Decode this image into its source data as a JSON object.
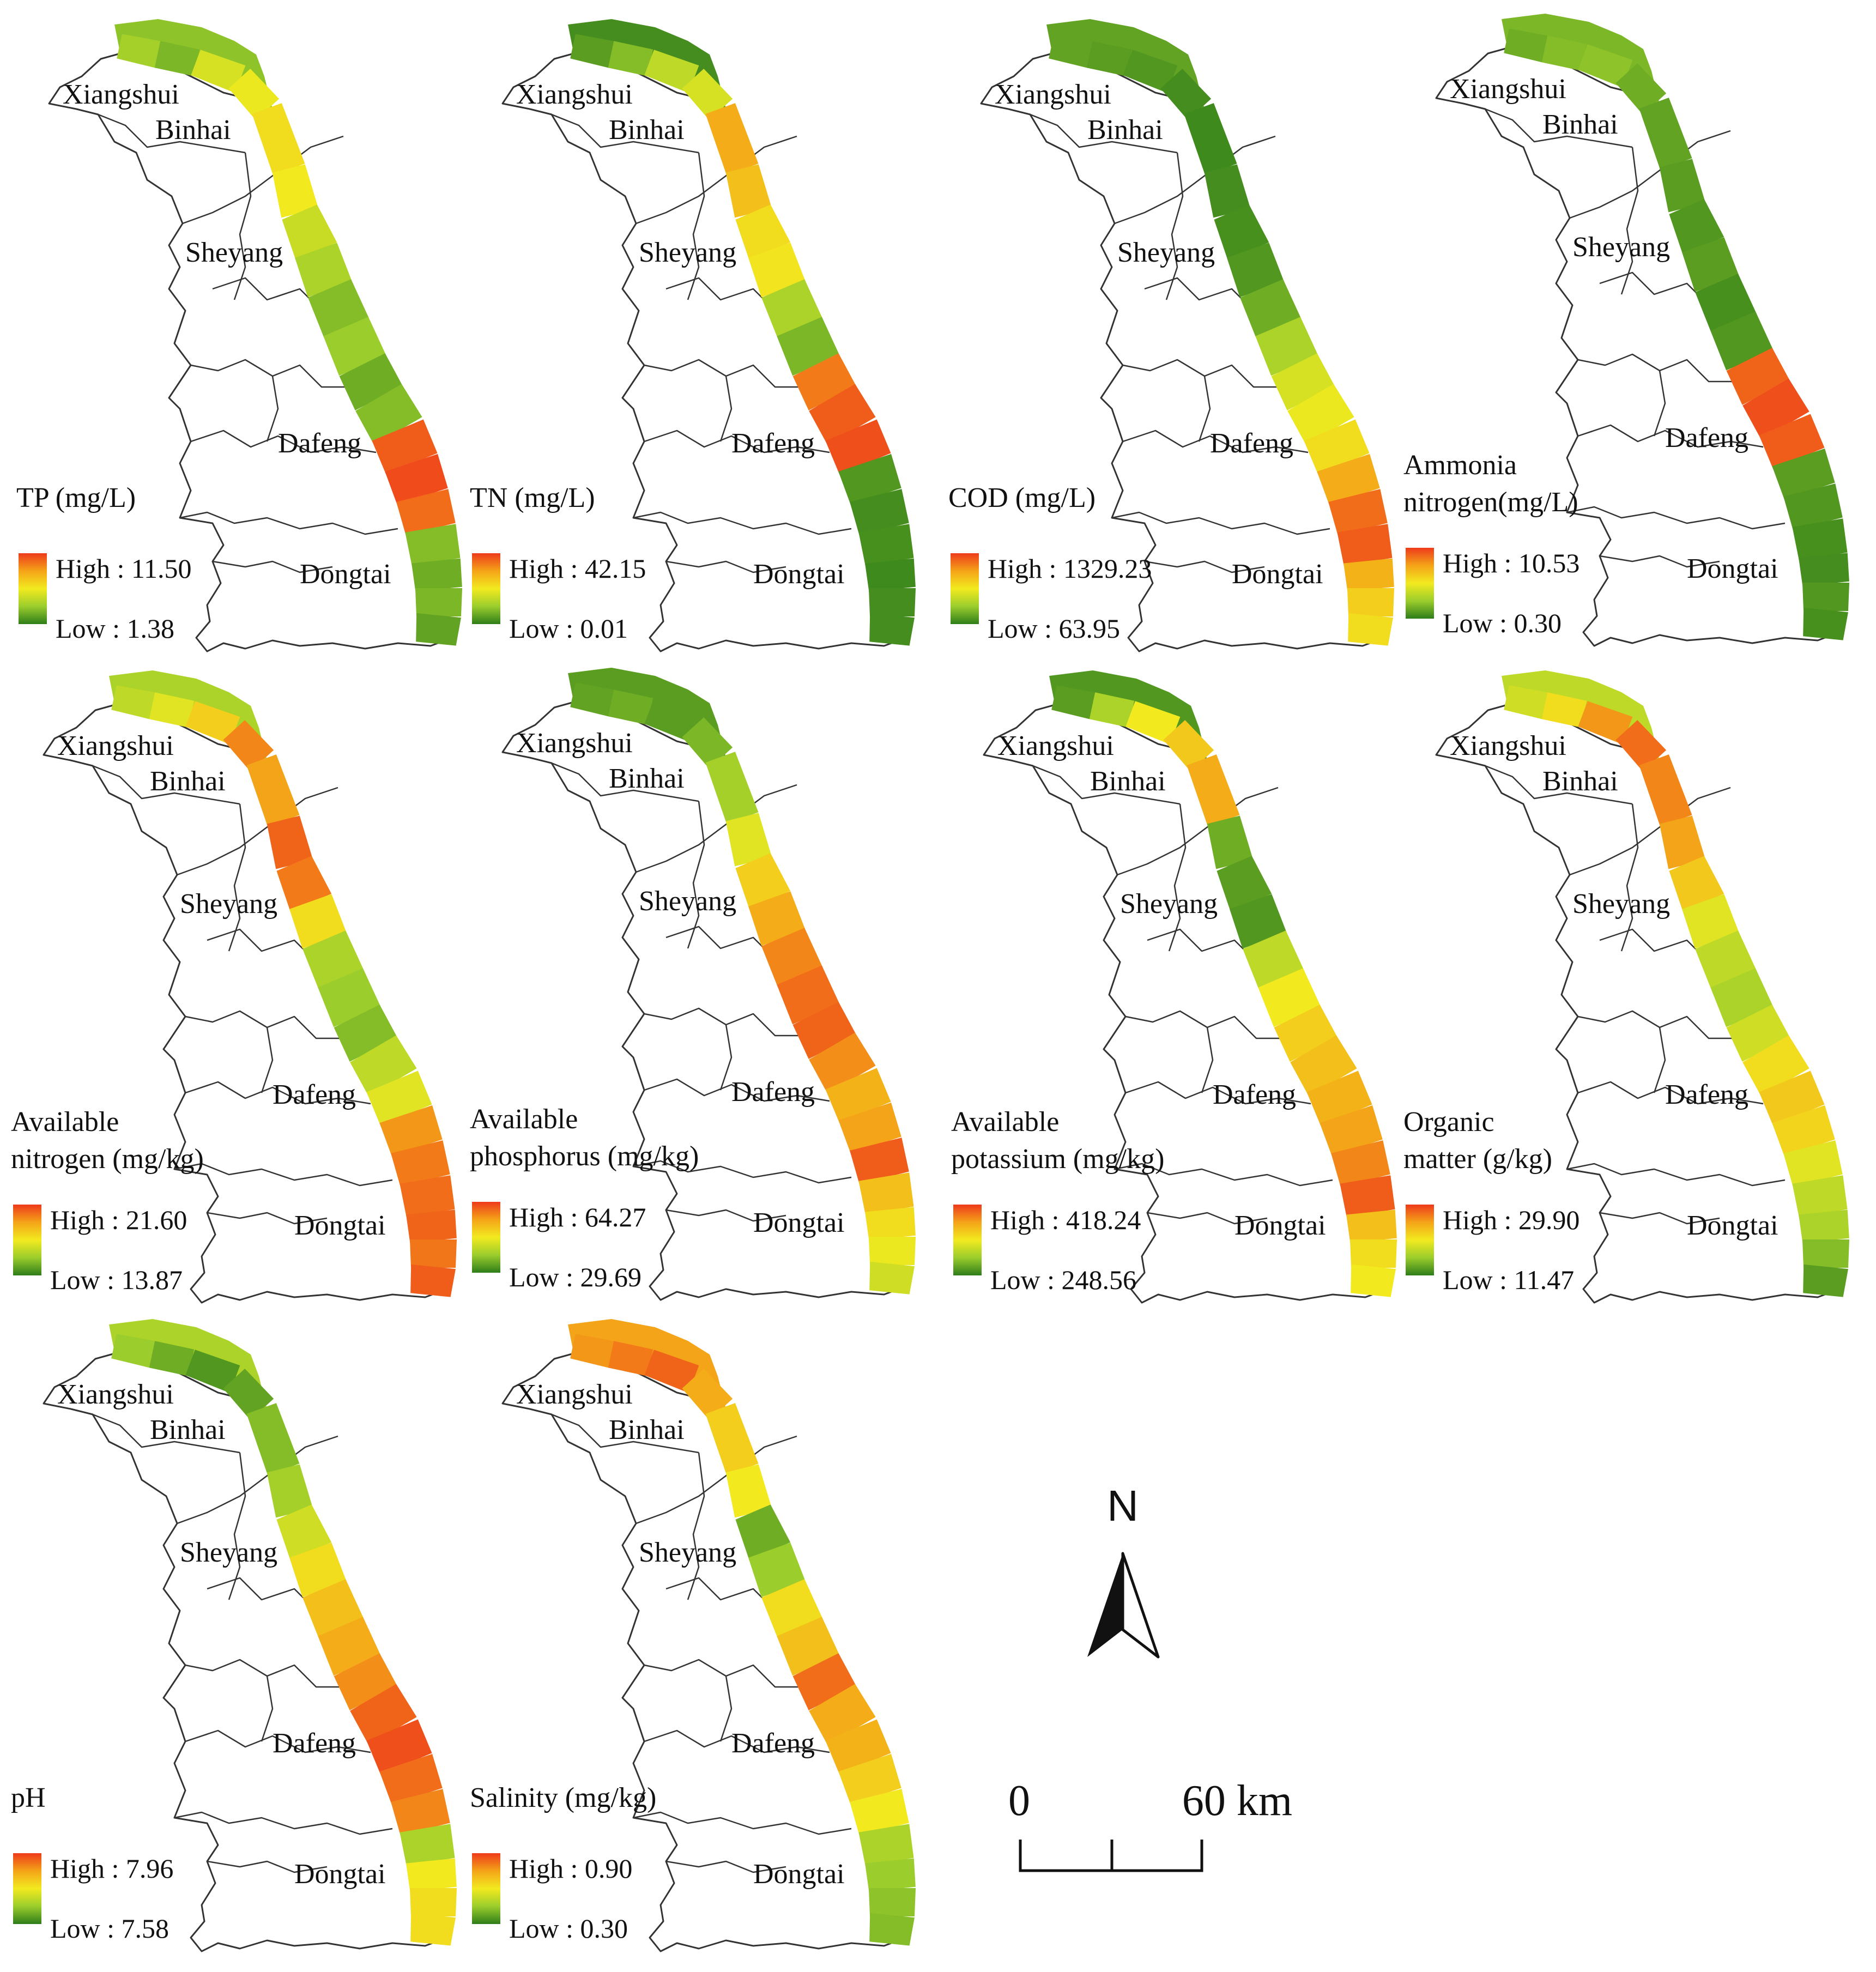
{
  "district_names": {
    "xiangshui": "Xiangshui",
    "binhai": "Binhai",
    "sheyang": "Sheyang",
    "dafeng": "Dafeng",
    "dongtai": "Dongtai"
  },
  "legend_ramp": [
    "#2e7d1a",
    "#9bcd2c",
    "#f2ea1f",
    "#f4a418",
    "#ee3a1b"
  ],
  "panels": [
    {
      "title": [
        "TP (mg/L)"
      ],
      "high": "High : 11.50",
      "low": "Low : 1.38",
      "segment_levels": [
        0.22,
        0.28,
        0.18,
        0.42,
        0.48,
        0.55,
        0.5,
        0.38,
        0.3,
        0.2,
        0.25,
        0.15,
        0.2,
        0.92,
        0.96,
        0.88,
        0.2,
        0.15,
        0.18,
        0.12
      ]
    },
    {
      "title": [
        "TN (mg/L)"
      ],
      "high": "High : 42.15",
      "low": "Low : 0.01",
      "segment_levels": [
        0.05,
        0.1,
        0.2,
        0.35,
        0.42,
        0.72,
        0.65,
        0.55,
        0.52,
        0.3,
        0.18,
        0.85,
        0.92,
        0.95,
        0.08,
        0.05,
        0.06,
        0.04,
        0.05,
        0.05
      ]
    },
    {
      "title": [
        "COD (mg/L)"
      ],
      "high": "High : 1329.23",
      "low": "Low : 63.95",
      "segment_levels": [
        0.12,
        0.12,
        0.1,
        0.08,
        0.05,
        0.04,
        0.05,
        0.06,
        0.08,
        0.15,
        0.3,
        0.42,
        0.48,
        0.55,
        0.72,
        0.88,
        0.92,
        0.7,
        0.6,
        0.55
      ]
    },
    {
      "title": [
        "Ammonia",
        "nitrogen(mg/L)"
      ],
      "high": "High : 10.53",
      "low": "Low : 0.30",
      "segment_levels": [
        0.18,
        0.15,
        0.2,
        0.22,
        0.15,
        0.12,
        0.1,
        0.08,
        0.1,
        0.06,
        0.08,
        0.9,
        0.95,
        0.92,
        0.1,
        0.08,
        0.06,
        0.05,
        0.08,
        0.06
      ]
    },
    {
      "title": [
        "Available",
        "nitrogen (mg/kg)"
      ],
      "high": "High : 21.60",
      "low": "Low : 13.87",
      "segment_levels": [
        0.3,
        0.35,
        0.45,
        0.6,
        0.82,
        0.75,
        0.9,
        0.85,
        0.55,
        0.3,
        0.25,
        0.2,
        0.35,
        0.45,
        0.78,
        0.85,
        0.88,
        0.9,
        0.86,
        0.92
      ]
    },
    {
      "title": [
        "Available",
        "phosphorus (mg/kg)"
      ],
      "high": "High : 64.27",
      "low": "Low : 29.69",
      "segment_levels": [
        0.1,
        0.12,
        0.15,
        0.1,
        0.18,
        0.28,
        0.45,
        0.6,
        0.72,
        0.82,
        0.88,
        0.9,
        0.8,
        0.7,
        0.75,
        0.92,
        0.65,
        0.55,
        0.48,
        0.4
      ]
    },
    {
      "title": [
        "Available",
        "potassium (mg/kg)"
      ],
      "high": "High : 418.24",
      "low": "Low : 248.56",
      "segment_levels": [
        0.08,
        0.1,
        0.3,
        0.5,
        0.62,
        0.72,
        0.15,
        0.1,
        0.08,
        0.35,
        0.5,
        0.6,
        0.65,
        0.7,
        0.75,
        0.82,
        0.92,
        0.65,
        0.55,
        0.5
      ]
    },
    {
      "title": [
        "Organic",
        "matter (g/kg)"
      ],
      "high": "High : 29.90",
      "low": "Low : 11.47",
      "segment_levels": [
        0.35,
        0.4,
        0.55,
        0.78,
        0.88,
        0.82,
        0.75,
        0.62,
        0.45,
        0.35,
        0.3,
        0.4,
        0.55,
        0.62,
        0.58,
        0.45,
        0.35,
        0.3,
        0.2,
        0.1
      ]
    },
    {
      "title": [
        "pH"
      ],
      "high": "High : 7.96",
      "low": "Low : 7.58",
      "segment_levels": [
        0.3,
        0.25,
        0.15,
        0.08,
        0.12,
        0.2,
        0.28,
        0.4,
        0.55,
        0.65,
        0.72,
        0.8,
        0.9,
        0.95,
        0.88,
        0.82,
        0.3,
        0.5,
        0.55,
        0.55
      ]
    },
    {
      "title": [
        "Salinity (mg/kg)"
      ],
      "high": "High : 0.90",
      "low": "Low : 0.30",
      "segment_levels": [
        0.75,
        0.78,
        0.85,
        0.9,
        0.72,
        0.6,
        0.5,
        0.15,
        0.25,
        0.55,
        0.65,
        0.88,
        0.72,
        0.7,
        0.6,
        0.5,
        0.3,
        0.25,
        0.22,
        0.2
      ]
    }
  ],
  "north_arrow": {
    "label": "N",
    "icon": "north-arrow-icon"
  },
  "scale_bar": {
    "zero": "0",
    "distance": "60 km"
  }
}
